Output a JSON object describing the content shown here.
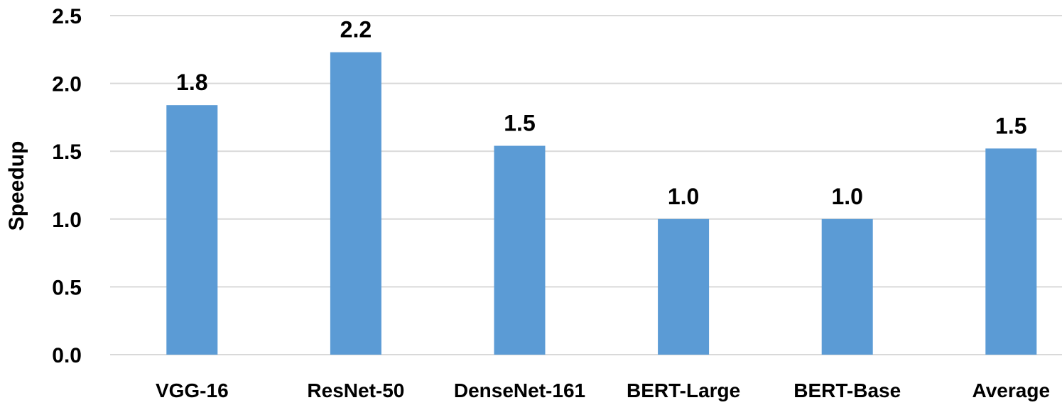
{
  "chart_data": {
    "type": "bar",
    "title": "",
    "xlabel": "",
    "ylabel": "Speedup",
    "ylim": [
      0,
      2.5
    ],
    "yticks": [
      "0.0",
      "0.5",
      "1.0",
      "1.5",
      "2.0",
      "2.5"
    ],
    "grid": true,
    "bar_color": "#5B9BD5",
    "categories": [
      "VGG-16",
      "ResNet-50",
      "DenseNet-161",
      "BERT-Large",
      "BERT-Base",
      "Average"
    ],
    "values": [
      1.84,
      2.23,
      1.54,
      1.0,
      1.0,
      1.52
    ],
    "data_labels": [
      "1.8",
      "2.2",
      "1.5",
      "1.0",
      "1.0",
      "1.5"
    ]
  }
}
